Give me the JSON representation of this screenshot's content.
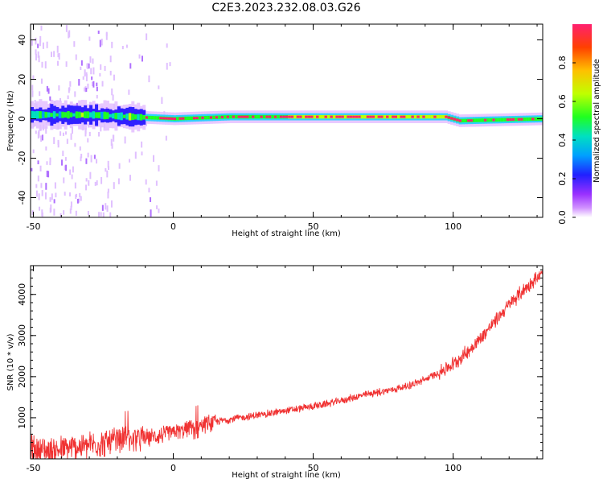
{
  "title": "C2E3.2023.232.08.03.G26",
  "chart_data": [
    {
      "type": "heatmap",
      "xlabel": "Height of straight line (km)",
      "ylabel": "Frequency (Hz)",
      "xlim": [
        -51,
        132
      ],
      "ylim": [
        -50,
        48
      ],
      "xticks": [
        -50,
        0,
        50,
        100
      ],
      "yticks": [
        -40,
        -20,
        0,
        20,
        40
      ],
      "colorbar": {
        "label": "Normalized spectral amplitude",
        "range": [
          0,
          1
        ],
        "ticks": [
          0.0,
          0.2,
          0.4,
          0.6,
          0.8
        ]
      },
      "ridge": [
        {
          "x": -50,
          "freq_hz": 2
        },
        {
          "x": -30,
          "freq_hz": 2
        },
        {
          "x": -15,
          "freq_hz": 1
        },
        {
          "x": 0,
          "freq_hz": 0
        },
        {
          "x": 20,
          "freq_hz": 1
        },
        {
          "x": 50,
          "freq_hz": 1
        },
        {
          "x": 97,
          "freq_hz": 1
        },
        {
          "x": 102,
          "freq_hz": -1
        },
        {
          "x": 132,
          "freq_hz": 0
        }
      ]
    },
    {
      "type": "line",
      "xlabel": "Height of straight line (km)",
      "ylabel": "SNR (10 * v/v)",
      "xlim": [
        -51,
        132
      ],
      "ylim": [
        0,
        4700
      ],
      "xticks": [
        -50,
        0,
        50,
        100
      ],
      "yticks": [
        1000,
        2000,
        3000,
        4000
      ],
      "color": "#f03232",
      "series": [
        {
          "x": [
            -51,
            -45,
            -40,
            -35,
            -30,
            -25,
            -20,
            -15,
            -10,
            -5,
            0,
            5,
            10,
            15,
            20,
            25,
            30,
            35,
            40,
            45,
            50,
            55,
            60,
            65,
            70,
            75,
            80,
            85,
            90,
            95,
            100,
            105,
            110,
            115,
            120,
            125,
            130,
            132
          ],
          "values": [
            250,
            200,
            220,
            280,
            330,
            380,
            430,
            480,
            520,
            560,
            640,
            720,
            830,
            900,
            960,
            1010,
            1060,
            1110,
            1170,
            1220,
            1280,
            1340,
            1420,
            1500,
            1580,
            1640,
            1710,
            1800,
            1930,
            2100,
            2300,
            2600,
            2950,
            3350,
            3750,
            4100,
            4400,
            4480
          ]
        }
      ]
    }
  ]
}
